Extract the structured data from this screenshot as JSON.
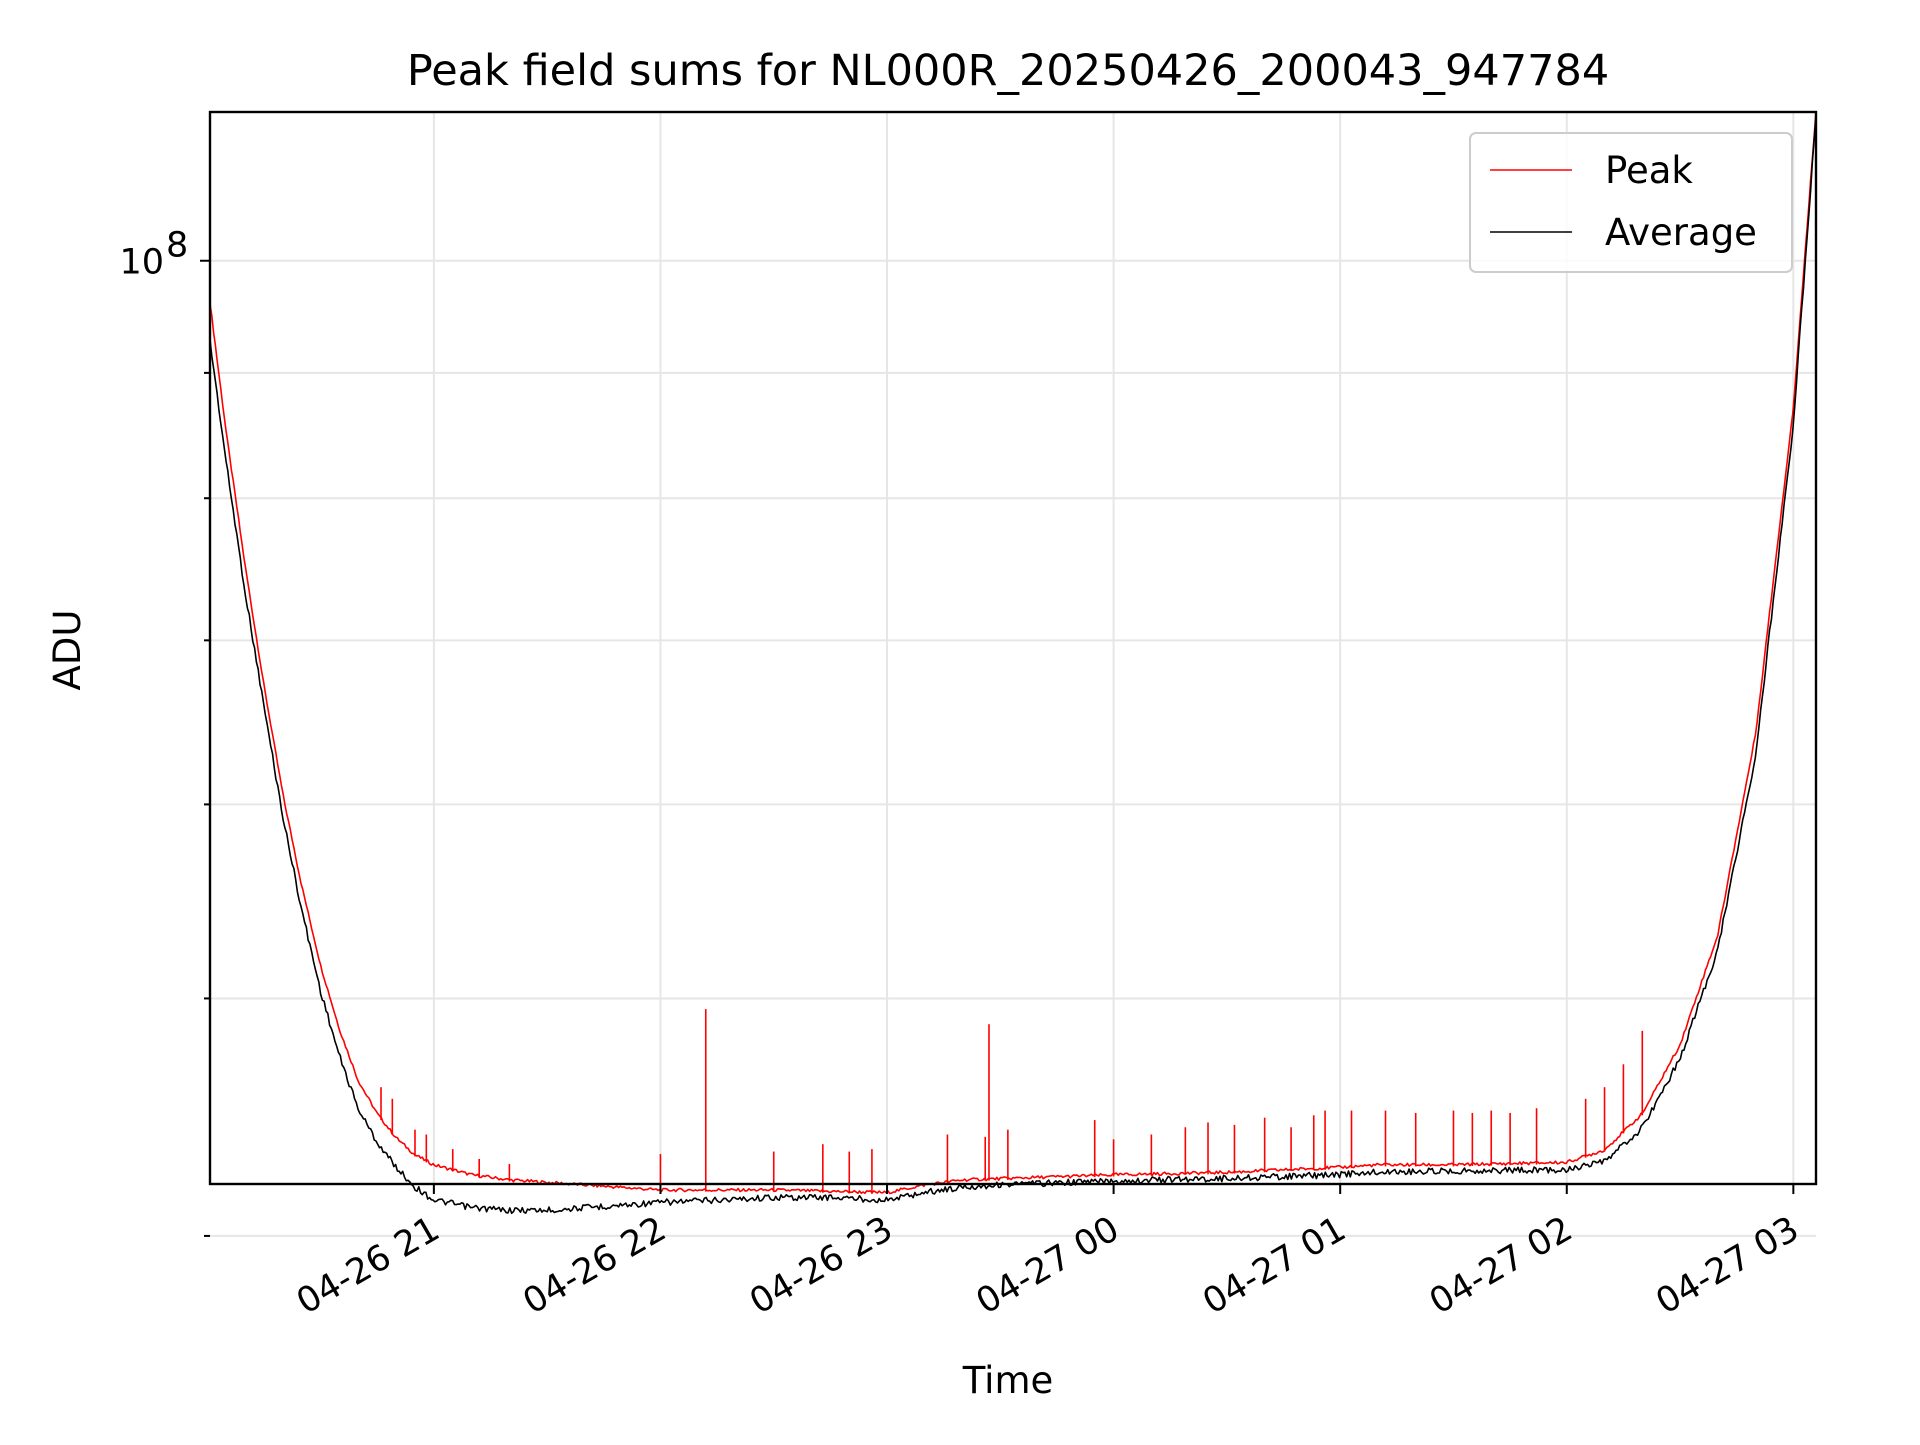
{
  "chart_data": {
    "type": "line",
    "title": "Peak field sums for NL000R_20250426_200043_947784",
    "xlabel": "Time",
    "ylabel": "ADU",
    "yscale": "log",
    "xlim": [
      "2025-04-26T20:00:43",
      "2025-04-27T03:06:00"
    ],
    "ylim": [
      42000000.0,
      115000000.0
    ],
    "grid": true,
    "legend_placement": "top-right",
    "x_tick_labels": [
      "04-26 21",
      "04-26 22",
      "04-26 23",
      "04-27 00",
      "04-27 01",
      "04-27 02",
      "04-27 03"
    ],
    "y_tick_labels": [
      {
        "base": "10",
        "exponent": "8",
        "value": 100000000.0
      }
    ],
    "y_minor_ticks": [
      40000000.0,
      50000000.0,
      60000000.0,
      70000000.0,
      80000000.0,
      90000000.0
    ],
    "series": [
      {
        "name": "Peak",
        "color": "#ff0000",
        "base_x": [
          "20:00:43",
          "20:05",
          "20:10",
          "20:15",
          "20:20",
          "20:25",
          "20:30",
          "20:35",
          "20:40",
          "20:45",
          "20:50",
          "20:55",
          "21:00",
          "21:10",
          "21:20",
          "21:30",
          "21:40",
          "21:50",
          "22:00",
          "22:15",
          "22:30",
          "22:45",
          "23:00",
          "23:10",
          "23:20",
          "23:30",
          "23:40",
          "23:50",
          "00:00",
          "00:30",
          "01:00",
          "01:10",
          "01:30",
          "02:00",
          "02:10",
          "02:20",
          "02:30",
          "02:40",
          "02:50",
          "03:00",
          "03:06"
        ],
        "base_y": [
          96000000.0,
          85000000.0,
          75000000.0,
          67000000.0,
          60500000.0,
          55500000.0,
          51500000.0,
          48500000.0,
          46200000.0,
          44800000.0,
          43800000.0,
          43100000.0,
          42700000.0,
          42300000.0,
          42100000.0,
          42000000.0,
          41900000.0,
          41800000.0,
          41700000.0,
          41700000.0,
          41700000.0,
          41650000.0,
          41600000.0,
          41900000.0,
          42100000.0,
          42150000.0,
          42200000.0,
          42250000.0,
          42300000.0,
          42400000.0,
          42600000.0,
          42700000.0,
          42700000.0,
          42800000.0,
          43300000.0,
          44800000.0,
          47800000.0,
          53000000.0,
          64000000.0,
          87000000.0,
          115000000.0
        ],
        "spikes": [
          {
            "x": "20:46",
            "y": 46000000.0
          },
          {
            "x": "20:49",
            "y": 45500000.0
          },
          {
            "x": "20:55",
            "y": 44200000.0
          },
          {
            "x": "20:58",
            "y": 44000000.0
          },
          {
            "x": "21:05",
            "y": 43400000.0
          },
          {
            "x": "21:12",
            "y": 43000000.0
          },
          {
            "x": "21:20",
            "y": 42800000.0
          },
          {
            "x": "22:00",
            "y": 43200000.0
          },
          {
            "x": "22:12",
            "y": 49500000.0
          },
          {
            "x": "22:30",
            "y": 43300000.0
          },
          {
            "x": "22:43",
            "y": 43600000.0
          },
          {
            "x": "22:50",
            "y": 43300000.0
          },
          {
            "x": "22:56",
            "y": 43400000.0
          },
          {
            "x": "23:16",
            "y": 44000000.0
          },
          {
            "x": "23:26",
            "y": 43900000.0
          },
          {
            "x": "23:27",
            "y": 48800000.0
          },
          {
            "x": "23:32",
            "y": 44200000.0
          },
          {
            "x": "23:55",
            "y": 44600000.0
          },
          {
            "x": "00:00",
            "y": 43800000.0
          },
          {
            "x": "00:10",
            "y": 44000000.0
          },
          {
            "x": "00:19",
            "y": 44300000.0
          },
          {
            "x": "00:25",
            "y": 44500000.0
          },
          {
            "x": "00:32",
            "y": 44400000.0
          },
          {
            "x": "00:40",
            "y": 44700000.0
          },
          {
            "x": "00:47",
            "y": 44300000.0
          },
          {
            "x": "00:53",
            "y": 44800000.0
          },
          {
            "x": "00:56",
            "y": 45000000.0
          },
          {
            "x": "01:03",
            "y": 45000000.0
          },
          {
            "x": "01:12",
            "y": 45000000.0
          },
          {
            "x": "01:20",
            "y": 44900000.0
          },
          {
            "x": "01:30",
            "y": 45000000.0
          },
          {
            "x": "01:35",
            "y": 44900000.0
          },
          {
            "x": "01:40",
            "y": 45000000.0
          },
          {
            "x": "01:45",
            "y": 44900000.0
          },
          {
            "x": "01:52",
            "y": 45100000.0
          },
          {
            "x": "02:05",
            "y": 45500000.0
          },
          {
            "x": "02:10",
            "y": 46000000.0
          },
          {
            "x": "02:15",
            "y": 47000000.0
          },
          {
            "x": "02:20",
            "y": 48500000.0
          }
        ]
      },
      {
        "name": "Average",
        "color": "#000000",
        "base_x": [
          "20:00:43",
          "20:05",
          "20:10",
          "20:15",
          "20:20",
          "20:25",
          "20:30",
          "20:35",
          "20:40",
          "20:45",
          "20:50",
          "20:55",
          "21:00",
          "21:10",
          "21:20",
          "21:30",
          "21:40",
          "21:50",
          "22:00",
          "22:15",
          "22:30",
          "22:45",
          "23:00",
          "23:10",
          "23:20",
          "23:30",
          "23:40",
          "23:50",
          "00:00",
          "00:30",
          "01:00",
          "01:10",
          "01:30",
          "02:00",
          "02:10",
          "02:20",
          "02:30",
          "02:40",
          "02:50",
          "03:00",
          "03:06"
        ],
        "base_y": [
          93000000.0,
          83000000.0,
          73500000.0,
          66000000.0,
          59500000.0,
          54500000.0,
          50500000.0,
          47500000.0,
          45200000.0,
          43800000.0,
          42800000.0,
          42000000.0,
          41500000.0,
          41200000.0,
          41100000.0,
          41100000.0,
          41200000.0,
          41300000.0,
          41400000.0,
          41500000.0,
          41600000.0,
          41600000.0,
          41500000.0,
          41800000.0,
          42000000.0,
          42100000.0,
          42150000.0,
          42200000.0,
          42250000.0,
          42350000.0,
          42500000.0,
          42600000.0,
          42650000.0,
          42700000.0,
          43000000.0,
          44400000.0,
          47400000.0,
          52500000.0,
          63000000.0,
          86000000.0,
          115000000.0
        ]
      }
    ]
  }
}
